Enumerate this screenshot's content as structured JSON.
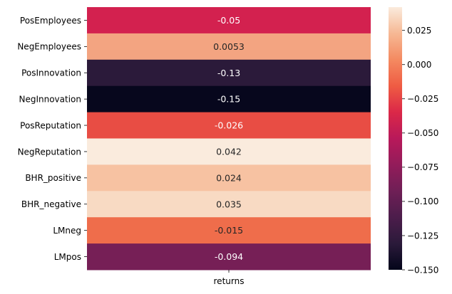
{
  "chart_data": {
    "type": "heatmap",
    "title": "",
    "xlabel": "",
    "ylabel": "",
    "columns": [
      "returns"
    ],
    "rows": [
      "PosEmployees",
      "NegEmployees",
      "PosInnovation",
      "NegInnovation",
      "PosReputation",
      "NegReputation",
      "BHR_positive",
      "BHR_negative",
      "LMneg",
      "LMpos"
    ],
    "values": [
      -0.05,
      0.0053,
      -0.13,
      -0.15,
      -0.026,
      0.042,
      0.024,
      0.035,
      -0.015,
      -0.094
    ],
    "annotations": [
      "-0.05",
      "0.0053",
      "-0.13",
      "-0.15",
      "-0.026",
      "0.042",
      "0.024",
      "0.035",
      "-0.015",
      "-0.094"
    ],
    "colormap": "rocket",
    "color_range": [
      -0.15,
      0.042
    ],
    "colorbar": {
      "ticks": [
        0.025,
        0.0,
        -0.025,
        -0.05,
        -0.075,
        -0.1,
        -0.125,
        -0.15
      ],
      "tick_labels": [
        "0.025",
        "0.000",
        "−0.025",
        "−0.050",
        "−0.075",
        "−0.100",
        "−0.125",
        "−0.150"
      ]
    },
    "cell_colors": [
      "#d3214f",
      "#f3a481",
      "#2b1a3a",
      "#07071d",
      "#e84d44",
      "#faebdd",
      "#f7c2a2",
      "#f8dac3",
      "#ef6d4b",
      "#761f56"
    ]
  }
}
